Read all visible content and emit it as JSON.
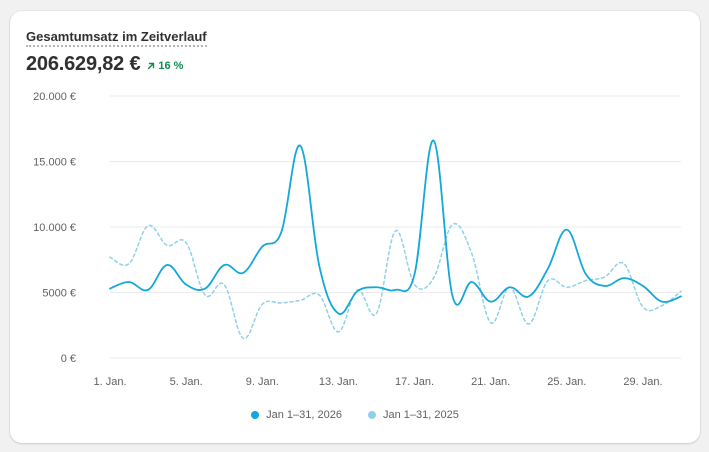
{
  "header": {
    "title": "Gesamtumsatz im Zeitverlauf",
    "total": "206.629,82 €",
    "change": "16 %",
    "change_icon": "arrow-up-right-icon"
  },
  "colors": {
    "current": "#13a8d9",
    "previous": "#8fd0ea",
    "grid": "#ebebeb",
    "positive": "#0e8a4e"
  },
  "chart_data": {
    "type": "line",
    "title": "Gesamtumsatz im Zeitverlauf",
    "x": [
      1,
      2,
      3,
      4,
      5,
      6,
      7,
      8,
      9,
      10,
      11,
      12,
      13,
      14,
      15,
      16,
      17,
      18,
      19,
      20,
      21,
      22,
      23,
      24,
      25,
      26,
      27,
      28,
      29,
      30,
      31
    ],
    "x_tick_labels": [
      "1. Jan.",
      "5. Jan.",
      "9. Jan.",
      "13. Jan.",
      "17. Jan.",
      "21. Jan.",
      "25. Jan.",
      "29. Jan."
    ],
    "x_tick_values": [
      1,
      5,
      9,
      13,
      17,
      21,
      25,
      29
    ],
    "y_tick_labels": [
      "0 €",
      "5000 €",
      "10.000 €",
      "15.000 €",
      "20.000 €"
    ],
    "y_tick_values": [
      0,
      5000,
      10000,
      15000,
      20000
    ],
    "ylim": [
      0,
      20000
    ],
    "grid": true,
    "legend_position": "bottom",
    "series": [
      {
        "name": "Jan 1–31, 2026",
        "style": "solid",
        "values": [
          5300,
          5800,
          5200,
          7100,
          5600,
          5300,
          7100,
          6500,
          8500,
          9600,
          16200,
          7000,
          3400,
          5100,
          5400,
          5200,
          6400,
          16600,
          4700,
          5800,
          4300,
          5400,
          4700,
          6800,
          9800,
          6400,
          5500,
          6100,
          5500,
          4300,
          4700
        ]
      },
      {
        "name": "Jan 1–31, 2025",
        "style": "dashed",
        "values": [
          7700,
          7200,
          10100,
          8600,
          8800,
          4800,
          5600,
          1500,
          4100,
          4200,
          4400,
          4800,
          2000,
          5200,
          3400,
          9700,
          5600,
          6100,
          10200,
          8000,
          2700,
          5400,
          2600,
          5900,
          5400,
          5900,
          6200,
          7200,
          3900,
          4000,
          5100
        ]
      }
    ]
  }
}
